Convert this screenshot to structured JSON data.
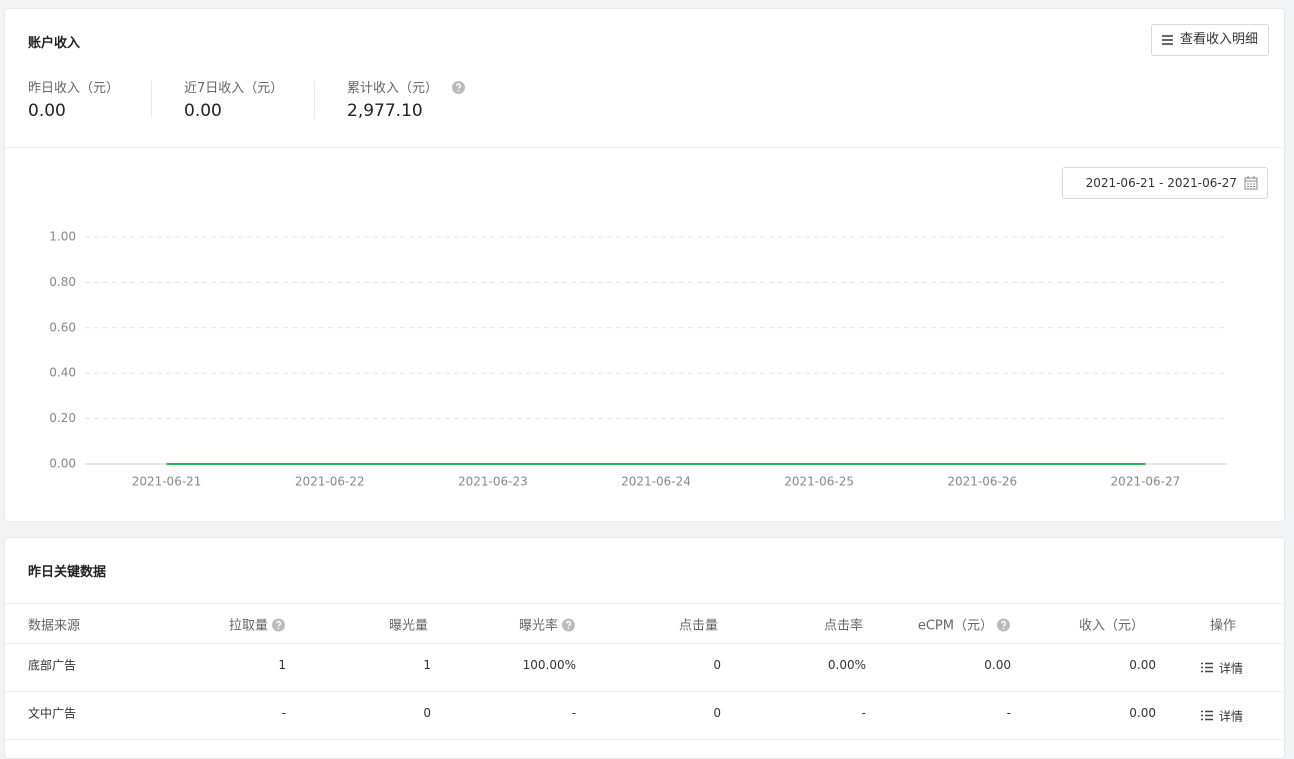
{
  "header": {
    "title": "账户收入",
    "button": "查看收入明细"
  },
  "stats": [
    {
      "label": "昨日收入（元）",
      "value": "0.00"
    },
    {
      "label": "近7日收入（元）",
      "value": "0.00"
    },
    {
      "label": "累计收入（元）",
      "value": "2,977.10"
    }
  ],
  "date_range": "2021-06-21 - 2021-06-27",
  "chart_data": {
    "type": "line",
    "x": [
      "2021-06-21",
      "2021-06-22",
      "2021-06-23",
      "2021-06-24",
      "2021-06-25",
      "2021-06-26",
      "2021-06-27"
    ],
    "series": [
      {
        "color": "#2db55d",
        "values": [
          0,
          0,
          0,
          0,
          0,
          0,
          0
        ]
      }
    ],
    "ylim": [
      0,
      1
    ],
    "yticks": [
      {
        "value": 0,
        "label": "0.00"
      },
      {
        "value": 0.2,
        "label": "0.20"
      },
      {
        "value": 0.4,
        "label": "0.40"
      },
      {
        "value": 0.6,
        "label": "0.60"
      },
      {
        "value": 0.8,
        "label": "0.80"
      },
      {
        "value": 1,
        "label": "1.00"
      }
    ],
    "grid": true
  },
  "table": {
    "title": "昨日关键数据",
    "columns": [
      "数据来源",
      "拉取量",
      "曝光量",
      "曝光率",
      "点击量",
      "点击率",
      "eCPM（元）",
      "收入（元）",
      "操作"
    ],
    "rows": [
      [
        "底部广告",
        "1",
        "1",
        "100.00%",
        "0",
        "0.00%",
        "0.00",
        "0.00",
        "详情"
      ],
      [
        "文中广告",
        "-",
        "0",
        "-",
        "0",
        "-",
        "-",
        "0.00",
        "详情"
      ]
    ]
  }
}
